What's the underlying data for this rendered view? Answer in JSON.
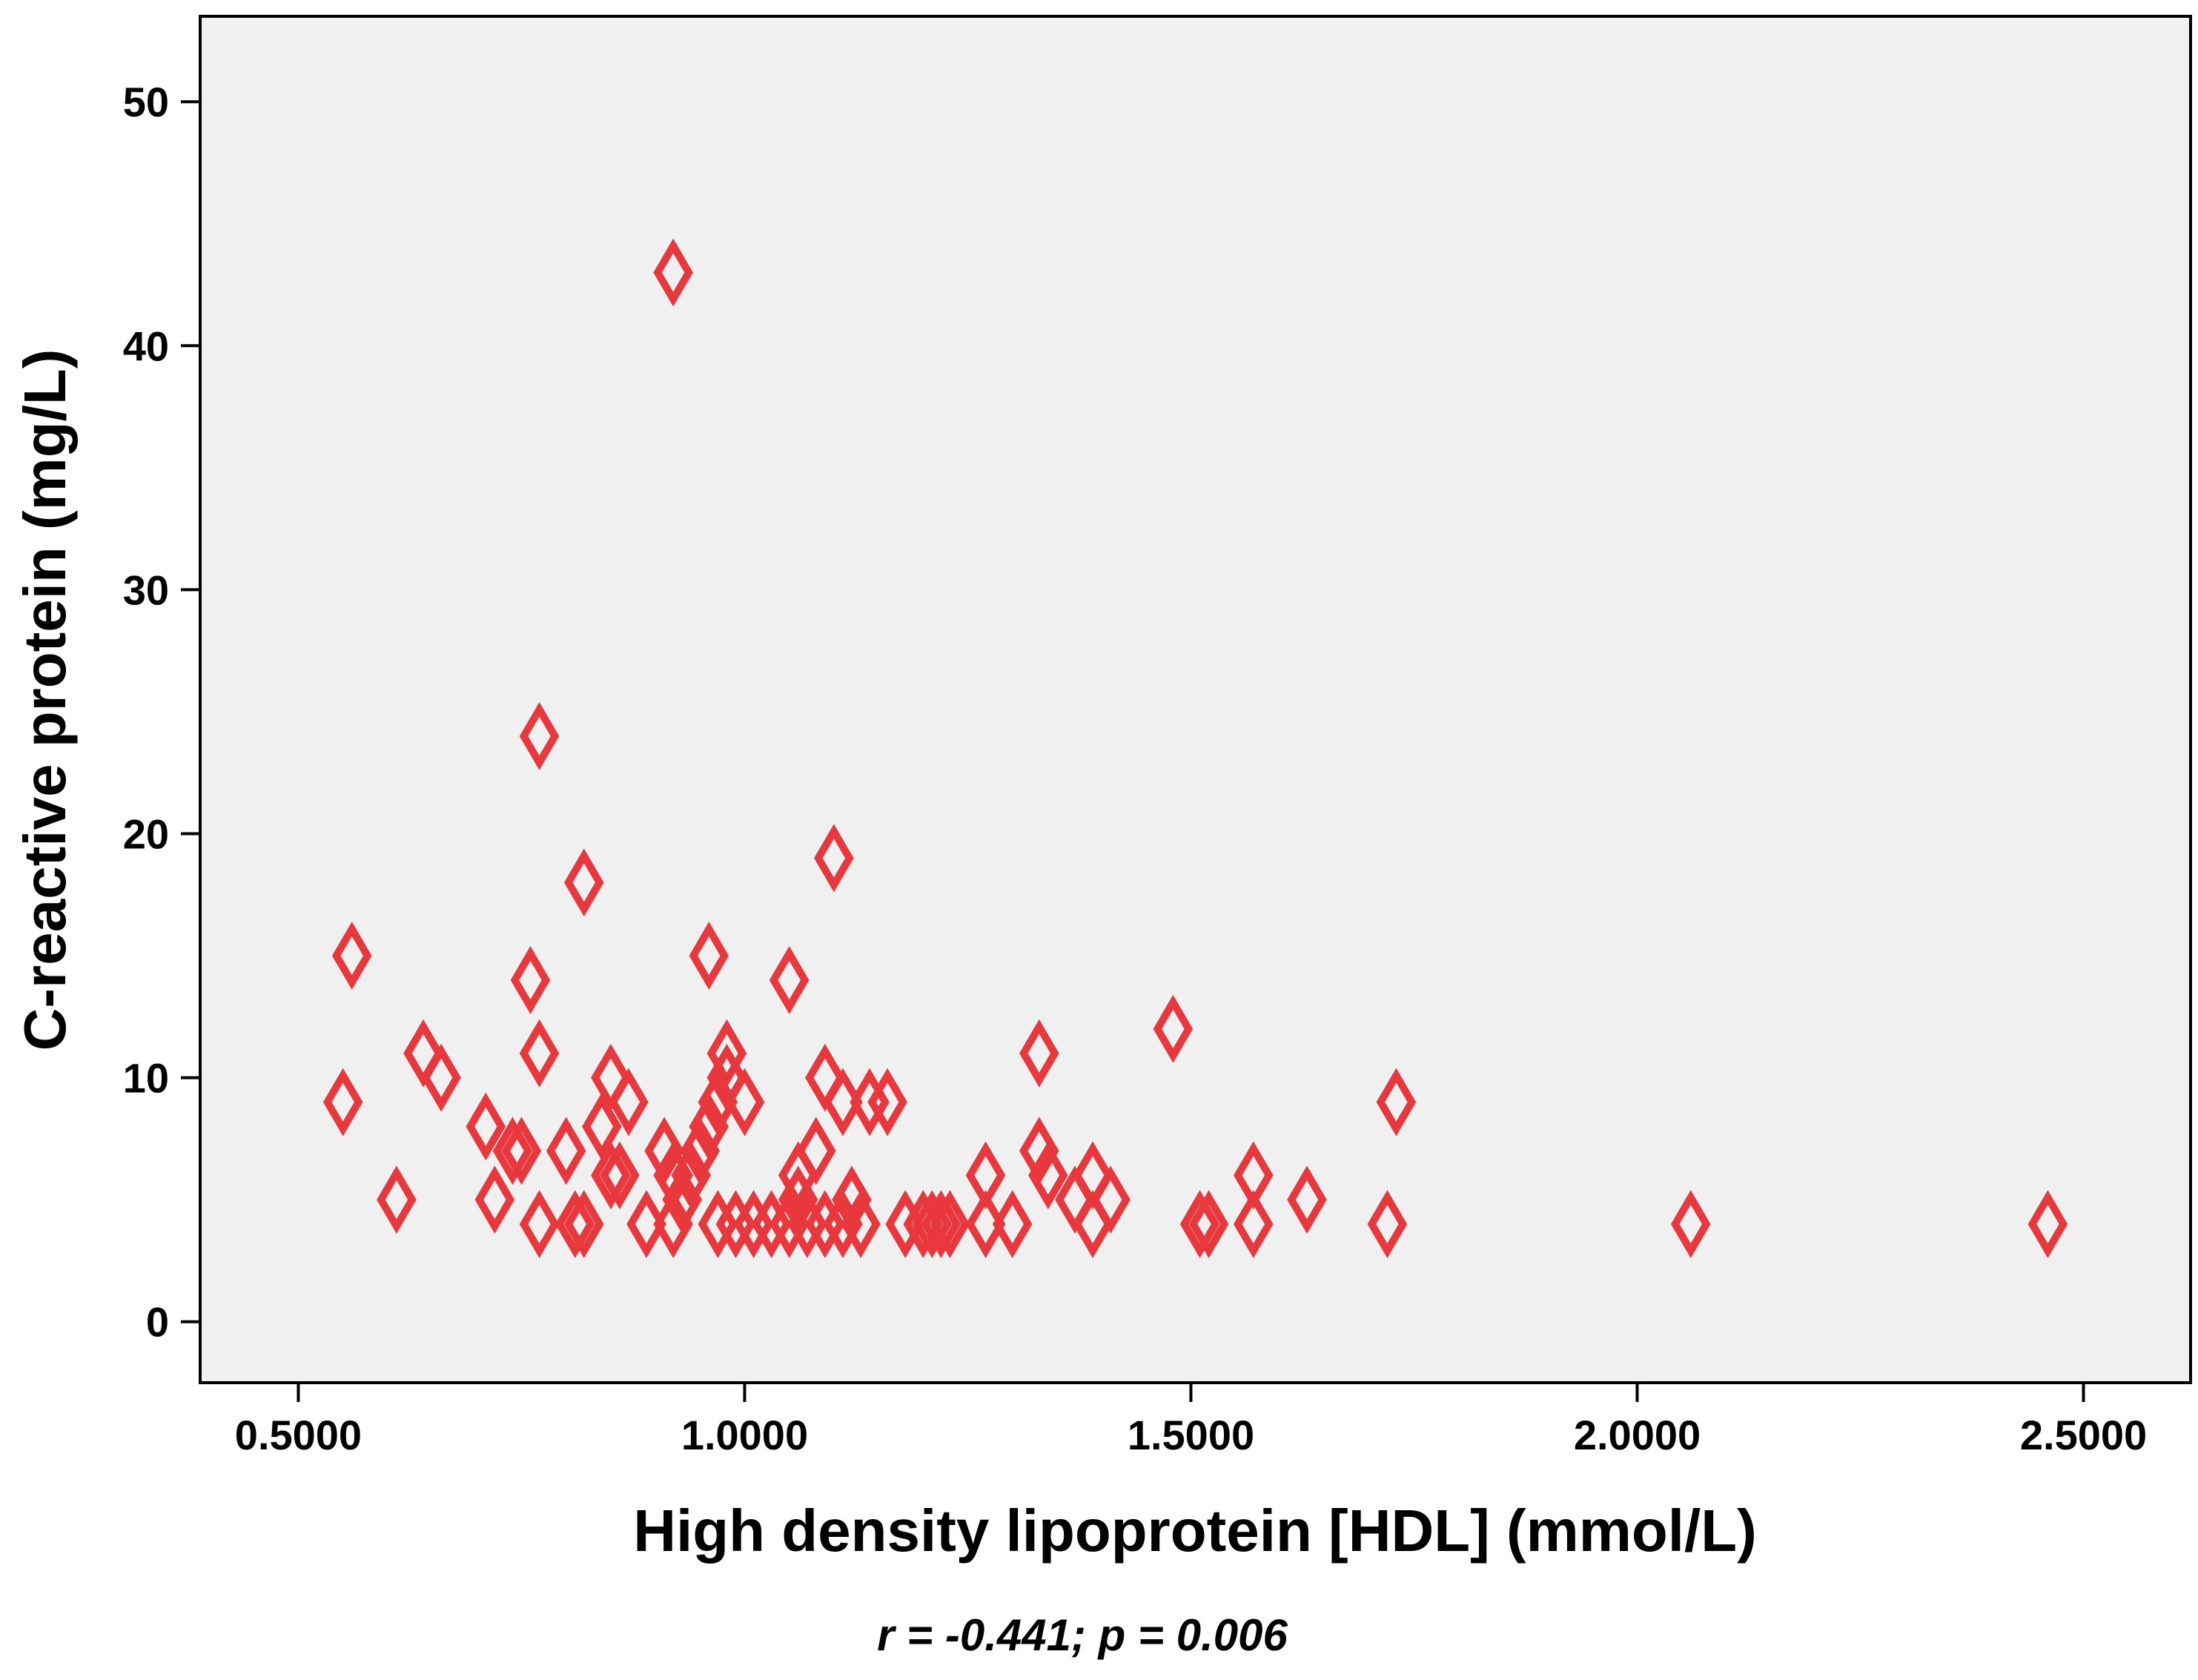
{
  "chart_data": {
    "type": "scatter",
    "title": "",
    "xlabel": "High density lipoprotein [HDL] (mmol/L)",
    "ylabel": "C-reactive protein (mg/L)",
    "annotation": "r = -0.441; p = 0.006",
    "xlim": [
      0.39,
      2.62
    ],
    "ylim": [
      -2.5,
      53.5
    ],
    "xticks": [
      0.5,
      1.0,
      1.5,
      2.0,
      2.5
    ],
    "xtick_labels": [
      "0.5000",
      "1.0000",
      "1.5000",
      "2.0000",
      "2.5000"
    ],
    "yticks": [
      0,
      10,
      20,
      30,
      40,
      50
    ],
    "ytick_labels": [
      "0",
      "10",
      "20",
      "30",
      "40",
      "50"
    ],
    "grid": false,
    "legend": "none",
    "marker": "open-diamond",
    "colors": {
      "marker": "#e8383d",
      "plot_background": "#f0f0f0",
      "axis": "#000000"
    },
    "points": [
      {
        "x": 0.56,
        "y": 15
      },
      {
        "x": 0.55,
        "y": 9
      },
      {
        "x": 0.61,
        "y": 5
      },
      {
        "x": 0.64,
        "y": 11
      },
      {
        "x": 0.66,
        "y": 10
      },
      {
        "x": 0.71,
        "y": 8
      },
      {
        "x": 0.72,
        "y": 5
      },
      {
        "x": 0.74,
        "y": 7
      },
      {
        "x": 0.75,
        "y": 7
      },
      {
        "x": 0.76,
        "y": 14
      },
      {
        "x": 0.77,
        "y": 11
      },
      {
        "x": 0.77,
        "y": 4
      },
      {
        "x": 0.77,
        "y": 24
      },
      {
        "x": 0.8,
        "y": 7
      },
      {
        "x": 0.81,
        "y": 4
      },
      {
        "x": 0.82,
        "y": 18
      },
      {
        "x": 0.82,
        "y": 4
      },
      {
        "x": 0.84,
        "y": 8
      },
      {
        "x": 0.85,
        "y": 10
      },
      {
        "x": 0.85,
        "y": 6
      },
      {
        "x": 0.86,
        "y": 6
      },
      {
        "x": 0.87,
        "y": 9
      },
      {
        "x": 0.89,
        "y": 4
      },
      {
        "x": 0.91,
        "y": 7
      },
      {
        "x": 0.92,
        "y": 6
      },
      {
        "x": 0.92,
        "y": 4
      },
      {
        "x": 0.92,
        "y": 43
      },
      {
        "x": 0.93,
        "y": 5
      },
      {
        "x": 0.94,
        "y": 6
      },
      {
        "x": 0.95,
        "y": 7
      },
      {
        "x": 0.96,
        "y": 15
      },
      {
        "x": 0.96,
        "y": 8
      },
      {
        "x": 0.97,
        "y": 9
      },
      {
        "x": 0.97,
        "y": 4
      },
      {
        "x": 0.98,
        "y": 11
      },
      {
        "x": 0.98,
        "y": 10
      },
      {
        "x": 0.99,
        "y": 4
      },
      {
        "x": 1.0,
        "y": 9
      },
      {
        "x": 1.01,
        "y": 4
      },
      {
        "x": 1.03,
        "y": 4
      },
      {
        "x": 1.05,
        "y": 14
      },
      {
        "x": 1.05,
        "y": 4
      },
      {
        "x": 1.06,
        "y": 6
      },
      {
        "x": 1.06,
        "y": 5
      },
      {
        "x": 1.07,
        "y": 4
      },
      {
        "x": 1.08,
        "y": 7
      },
      {
        "x": 1.09,
        "y": 10
      },
      {
        "x": 1.09,
        "y": 4
      },
      {
        "x": 1.1,
        "y": 19
      },
      {
        "x": 1.11,
        "y": 9
      },
      {
        "x": 1.11,
        "y": 4
      },
      {
        "x": 1.12,
        "y": 5
      },
      {
        "x": 1.13,
        "y": 4
      },
      {
        "x": 1.14,
        "y": 9
      },
      {
        "x": 1.16,
        "y": 9
      },
      {
        "x": 1.18,
        "y": 4
      },
      {
        "x": 1.2,
        "y": 4
      },
      {
        "x": 1.21,
        "y": 4
      },
      {
        "x": 1.22,
        "y": 4
      },
      {
        "x": 1.23,
        "y": 4
      },
      {
        "x": 1.27,
        "y": 6
      },
      {
        "x": 1.27,
        "y": 4
      },
      {
        "x": 1.3,
        "y": 4
      },
      {
        "x": 1.33,
        "y": 11
      },
      {
        "x": 1.33,
        "y": 7
      },
      {
        "x": 1.34,
        "y": 6
      },
      {
        "x": 1.37,
        "y": 5
      },
      {
        "x": 1.39,
        "y": 6
      },
      {
        "x": 1.39,
        "y": 4
      },
      {
        "x": 1.41,
        "y": 5
      },
      {
        "x": 1.48,
        "y": 12
      },
      {
        "x": 1.51,
        "y": 4
      },
      {
        "x": 1.52,
        "y": 4
      },
      {
        "x": 1.57,
        "y": 6
      },
      {
        "x": 1.57,
        "y": 4
      },
      {
        "x": 1.63,
        "y": 5
      },
      {
        "x": 1.72,
        "y": 4
      },
      {
        "x": 1.73,
        "y": 9
      },
      {
        "x": 2.06,
        "y": 4
      },
      {
        "x": 2.46,
        "y": 4
      }
    ]
  }
}
